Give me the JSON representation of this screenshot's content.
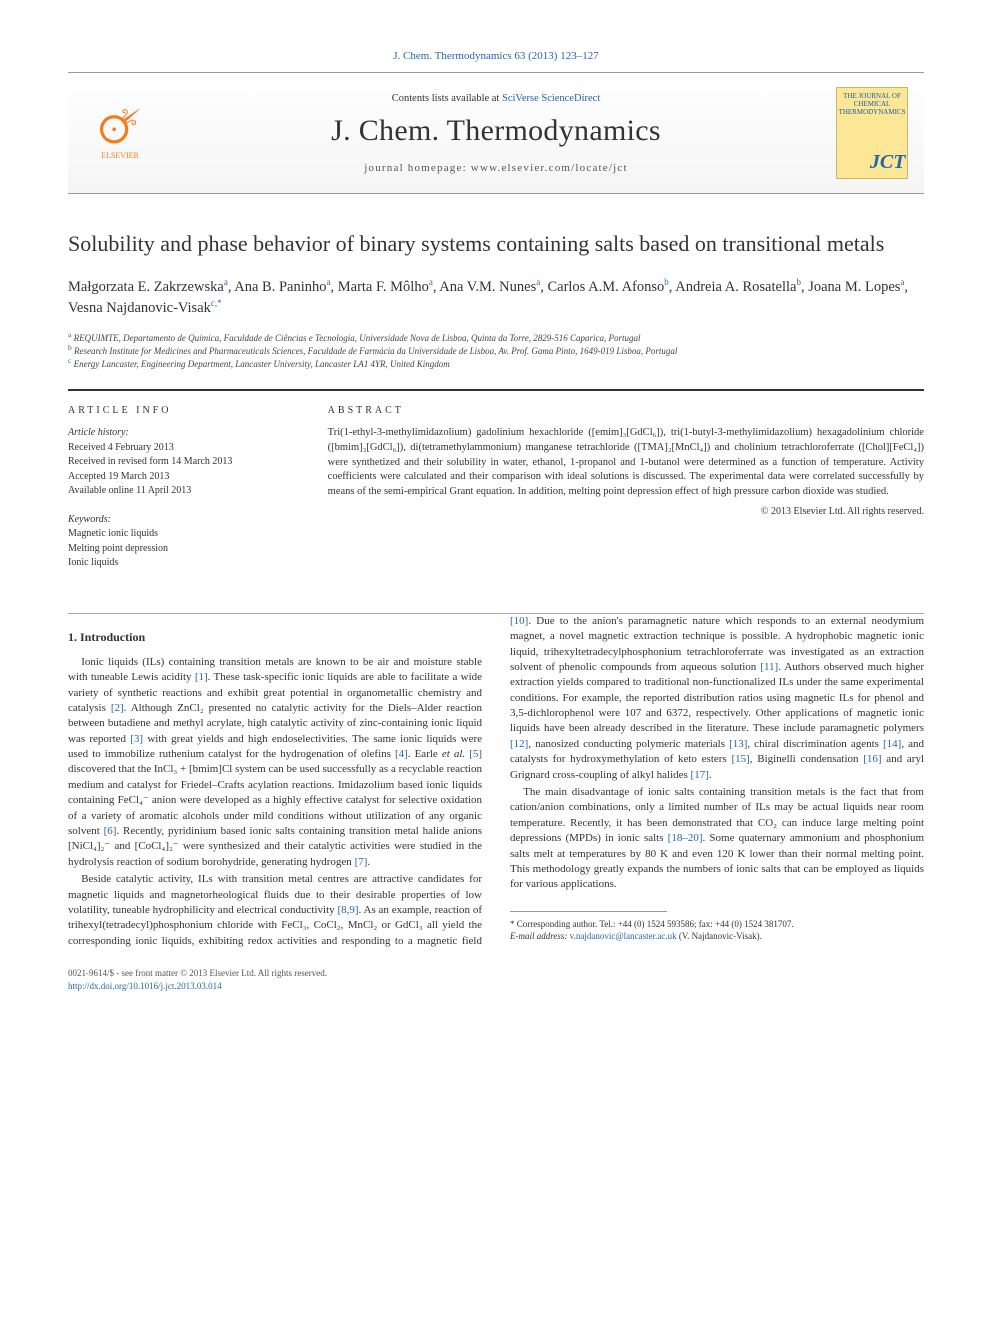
{
  "top_citation": "J. Chem. Thermodynamics 63 (2013) 123–127",
  "header": {
    "contents_prefix": "Contents lists available at ",
    "contents_link": "SciVerse ScienceDirect",
    "journal_title": "J. Chem. Thermodynamics",
    "homepage_prefix": "journal homepage: ",
    "homepage_url": "www.elsevier.com/locate/jct",
    "elsevier": "ELSEVIER",
    "cover_text_top": "THE JOURNAL OF CHEMICAL THERMODYNAMICS",
    "cover_text_bottom": "JCT"
  },
  "title": "Solubility and phase behavior of binary systems containing salts based on transitional metals",
  "authors_html": "Małgorzata E. Zakrzewska<sup>a</sup>, Ana B. Paninho<sup>a</sup>, Marta F. Môlho<sup>a</sup>, Ana V.M. Nunes<sup>a</sup>, Carlos A.M. Afonso<sup>b</sup>, Andreia A. Rosatella<sup>b</sup>, Joana M. Lopes<sup>a</sup>, Vesna Najdanovic-Visak<sup>c,*</sup>",
  "affiliations": [
    "<sup>a</sup> REQUIMTE, Departamento de Química, Faculdade de Ciências e Tecnologia, Universidade Nova de Lisboa, Quinta da Torre, 2829-516 Caparica, Portugal",
    "<sup>b</sup> Research Institute for Medicines and Pharmaceuticals Sciences, Faculdade de Farmácia da Universidade de Lisboa, Av. Prof. Gama Pinto, 1649-019 Lisboa, Portugal",
    "<sup>c</sup> Energy Lancaster, Engineering Department, Lancaster University, Lancaster LA1 4YR, United Kingdom"
  ],
  "info": {
    "label": "ARTICLE INFO",
    "history_head": "Article history:",
    "history": [
      "Received 4 February 2013",
      "Received in revised form 14 March 2013",
      "Accepted 19 March 2013",
      "Available online 11 April 2013"
    ],
    "keywords_head": "Keywords:",
    "keywords": [
      "Magnetic ionic liquids",
      "Melting point depression",
      "Ionic liquids"
    ]
  },
  "abstract": {
    "label": "ABSTRACT",
    "text": "Tri(1-ethyl-3-methylimidazolium) gadolinium hexachloride ([emim]₃[GdCl₆]), tri(1-butyl-3-methylimidazolium) hexagadolinium chloride ([bmim]₃[GdCl₆]), di(tetramethylammonium) manganese tetrachloride ([TMA]₂[MnCl₄]) and cholinium tetrachloroferrate ([Chol][FeCl₄]) were synthetized and their solubility in water, ethanol, 1-propanol and 1-butanol were determined as a function of temperature. Activity coefficients were calculated and their comparison with ideal solutions is discussed. The experimental data were correlated successfully by means of the semi-empirical Grant equation. In addition, melting point depression effect of high pressure carbon dioxide was studied.",
    "copyright": "© 2013 Elsevier Ltd. All rights reserved."
  },
  "body": {
    "sec1": "1. Introduction",
    "p1": "Ionic liquids (ILs) containing transition metals are known to be air and moisture stable with tuneable Lewis acidity <a class='cite'>[1]</a>. These task-specific ionic liquids are able to facilitate a wide variety of synthetic reactions and exhibit great potential in organometallic chemistry and catalysis <a class='cite'>[2]</a>. Although ZnCl₂ presented no catalytic activity for the Diels–Alder reaction between butadiene and methyl acrylate, high catalytic activity of zinc-containing ionic liquid was reported <a class='cite'>[3]</a> with great yields and high endoselectivities. The same ionic liquids were used to immobilize ruthenium catalyst for the hydrogenation of olefins <a class='cite'>[4]</a>. Earle <i>et al.</i> <a class='cite'>[5]</a> discovered that the InCl₃ + [bmim]Cl system can be used successfully as a recyclable reaction medium and catalyst for Friedel–Crafts acylation reactions. Imidazolium based ionic liquids containing FeCl₄⁻ anion were developed as a highly effective catalyst for selective oxidation of a variety of aromatic alcohols under mild conditions without utilization of any organic solvent <a class='cite'>[6]</a>. Recently, pyridinium based ionic salts containing transition metal halide anions [NiCl₄]₂⁻ and [CoCl₄]₂⁻ were synthesized and their catalytic activities were studied in the hydrolysis reaction of sodium borohydride, generating hydrogen <a class='cite'>[7]</a>.",
    "p2": "Beside catalytic activity, ILs with transition metal centres are attractive candidates for magnetic liquids and magnetorheological fluids due to their desirable properties of low volatility, tuneable hydrophilicity and electrical conductivity <a class='cite'>[8,9]</a>. As an example, reaction of trihexyl(tetradecyl)phosphonium chloride with FeCl₃, CoCl₂, MnCl₂ or GdCl₃ all yield the corresponding ionic liquids, exhibiting redox activities and responding to a magnetic field <a class='cite'>[10]</a>. Due to the anion's paramagnetic nature which responds to an external neodymium magnet, a novel magnetic extraction technique is possible. A hydrophobic magnetic ionic liquid, trihexyltetradecylphosphonium tetrachloroferrate was investigated as an extraction solvent of phenolic compounds from aqueous solution <a class='cite'>[11]</a>. Authors observed much higher extraction yields compared to traditional non-functionalized ILs under the same experimental conditions. For example, the reported distribution ratios using magnetic ILs for phenol and 3,5-dichlorophenol were 107 and 6372, respectively. Other applications of magnetic ionic liquids have been already described in the literature. These include paramagnetic polymers <a class='cite'>[12]</a>, nanosized conducting polymeric materials <a class='cite'>[13]</a>, chiral discrimination agents <a class='cite'>[14]</a>, and catalysts for hydroxymethylation of keto esters <a class='cite'>[15]</a>, Biginelli condensation <a class='cite'>[16]</a> and aryl Grignard cross-coupling of alkyl halides <a class='cite'>[17]</a>.",
    "p3": "The main disadvantage of ionic salts containing transition metals is the fact that from cation/anion combinations, only a limited number of ILs may be actual liquids near room temperature. Recently, it has been demonstrated that CO₂ can induce large melting point depressions (MPDs) in ionic salts <a class='cite'>[18–20]</a>. Some quaternary ammonium and phosphonium salts melt at temperatures by 80 K and even 120 K lower than their normal melting point. This methodology greatly expands the numbers of ionic salts that can be employed as liquids for various applications."
  },
  "footnote": {
    "star": "* Corresponding author. Tel.: +44 (0) 1524 593586; fax: +44 (0) 1524 381707.",
    "email_label": "E-mail address:",
    "email": "v.najdanovic@lancaster.ac.uk",
    "email_name": "(V. Najdanovic-Visak)."
  },
  "footer": {
    "issn": "0021-9614/$ - see front matter © 2013 Elsevier Ltd. All rights reserved.",
    "doi": "http://dx.doi.org/10.1016/j.jct.2013.03.014"
  },
  "colors": {
    "link": "#2765a9",
    "text": "#333333",
    "elsevier_orange": "#f47b20",
    "cover_bg": "#fce797",
    "border": "#999999"
  }
}
